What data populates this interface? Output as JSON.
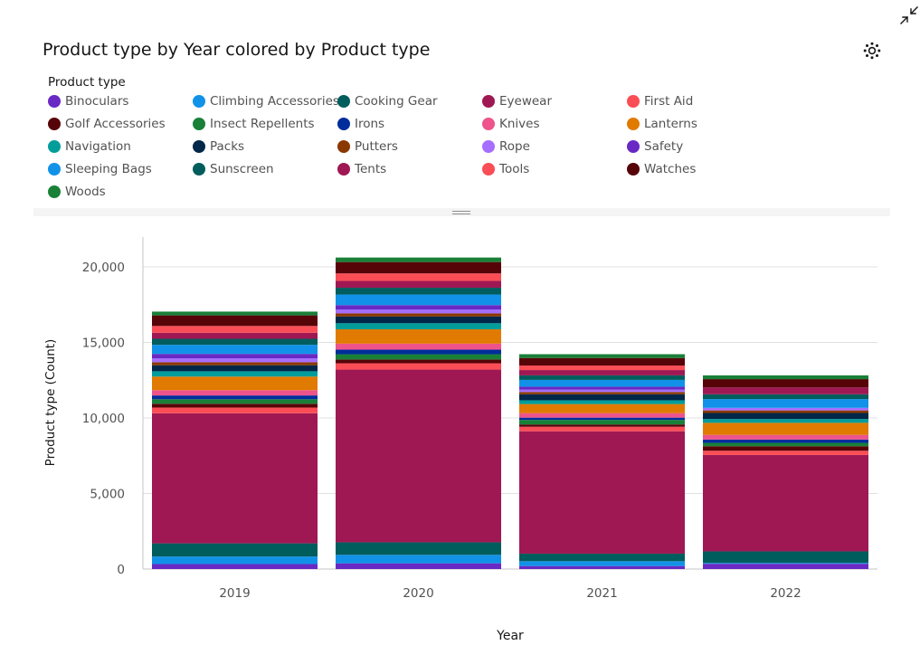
{
  "title": "Product type by Year colored by Product type",
  "legend": {
    "title": "Product type",
    "items": [
      {
        "label": "Binoculars",
        "color": "#6929c4"
      },
      {
        "label": "Climbing Accessories",
        "color": "#1192e8"
      },
      {
        "label": "Cooking Gear",
        "color": "#005d5d"
      },
      {
        "label": "Eyewear",
        "color": "#9f1853"
      },
      {
        "label": "First Aid",
        "color": "#fa4d56"
      },
      {
        "label": "Golf Accessories",
        "color": "#570408"
      },
      {
        "label": "Insect Repellents",
        "color": "#198038"
      },
      {
        "label": "Irons",
        "color": "#002d9c"
      },
      {
        "label": "Knives",
        "color": "#ee538b"
      },
      {
        "label": "Lanterns",
        "color": "#e17a00"
      },
      {
        "label": "Navigation",
        "color": "#009d9a"
      },
      {
        "label": "Packs",
        "color": "#012749"
      },
      {
        "label": "Putters",
        "color": "#8a3800"
      },
      {
        "label": "Rope",
        "color": "#a56eff"
      },
      {
        "label": "Safety",
        "color": "#6929c4"
      },
      {
        "label": "Sleeping Bags",
        "color": "#1192e8"
      },
      {
        "label": "Sunscreen",
        "color": "#005d5d"
      },
      {
        "label": "Tents",
        "color": "#9f1853"
      },
      {
        "label": "Tools",
        "color": "#fa4d56"
      },
      {
        "label": "Watches",
        "color": "#570408"
      },
      {
        "label": "Woods",
        "color": "#198038"
      }
    ]
  },
  "icons": {
    "collapse": "collapse-arrows-icon",
    "settings": "settings-icon",
    "resize": "resize-handle-icon"
  },
  "chart_data": {
    "type": "bar",
    "stacked": true,
    "xlabel": "Year",
    "ylabel": "Product type (Count)",
    "ylim": [
      0,
      22000
    ],
    "yticks": [
      0,
      5000,
      10000,
      15000,
      20000
    ],
    "ytick_labels": [
      "0",
      "5,000",
      "10,000",
      "15,000",
      "20,000"
    ],
    "grid": true,
    "legend_position": "top",
    "categories": [
      "2019",
      "2020",
      "2021",
      "2022"
    ],
    "series": [
      {
        "name": "Binoculars",
        "values": [
          330,
          380,
          200,
          350
        ]
      },
      {
        "name": "Climbing Accessories",
        "values": [
          500,
          560,
          320,
          60
        ]
      },
      {
        "name": "Cooking Gear",
        "values": [
          870,
          830,
          500,
          760
        ]
      },
      {
        "name": "Eyewear",
        "values": [
          8610,
          11430,
          8100,
          6380
        ]
      },
      {
        "name": "First Aid",
        "values": [
          380,
          420,
          300,
          280
        ]
      },
      {
        "name": "Golf Accessories",
        "values": [
          250,
          250,
          150,
          300
        ]
      },
      {
        "name": "Insect Repellents",
        "values": [
          300,
          350,
          300,
          220
        ]
      },
      {
        "name": "Irons",
        "values": [
          250,
          300,
          150,
          220
        ]
      },
      {
        "name": "Knives",
        "values": [
          350,
          400,
          300,
          310
        ]
      },
      {
        "name": "Lanterns",
        "values": [
          900,
          950,
          600,
          800
        ]
      },
      {
        "name": "Navigation",
        "values": [
          350,
          400,
          250,
          250
        ]
      },
      {
        "name": "Packs",
        "values": [
          400,
          450,
          400,
          400
        ]
      },
      {
        "name": "Putters",
        "values": [
          200,
          200,
          150,
          170
        ]
      },
      {
        "name": "Rope",
        "values": [
          250,
          250,
          150,
          170
        ]
      },
      {
        "name": "Safety",
        "values": [
          300,
          300,
          200,
          0
        ]
      },
      {
        "name": "Sleeping Bags",
        "values": [
          600,
          700,
          450,
          580
        ]
      },
      {
        "name": "Sunscreen",
        "values": [
          400,
          450,
          300,
          320
        ]
      },
      {
        "name": "Tents",
        "values": [
          400,
          450,
          350,
          450
        ]
      },
      {
        "name": "Tools",
        "values": [
          450,
          500,
          300,
          0
        ]
      },
      {
        "name": "Watches",
        "values": [
          700,
          750,
          500,
          550
        ]
      },
      {
        "name": "Woods",
        "values": [
          250,
          300,
          250,
          250
        ]
      }
    ]
  }
}
